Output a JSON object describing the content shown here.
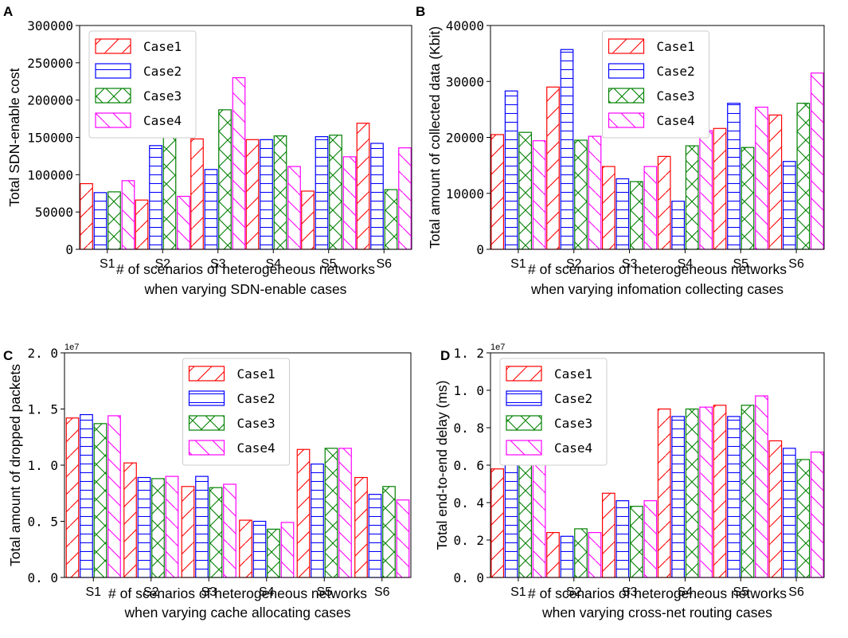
{
  "colors": {
    "case1": "#ff0000",
    "case2": "#0000ff",
    "case3": "#008000",
    "case4": "#ff00ff"
  },
  "chart_data": [
    {
      "panel": "A",
      "type": "bar",
      "title": "",
      "ylabel": "Total SDN-enable cost",
      "xlabel": "# of scenarios of heterogeneous networks",
      "xlabel2": "when varying SDN-enable cases",
      "categories": [
        "S1",
        "S2",
        "S3",
        "S4",
        "S5",
        "S6"
      ],
      "ylim": [
        0,
        300000
      ],
      "yticks": [
        0,
        50000,
        100000,
        150000,
        200000,
        250000,
        300000
      ],
      "ytick_labels": [
        "0",
        "50000",
        "100000",
        "150000",
        "200000",
        "250000",
        "300000"
      ],
      "scale_label": "",
      "legend_position": "upper-left",
      "series": [
        {
          "name": "Case1",
          "values": [
            88000,
            66000,
            148000,
            147000,
            78000,
            169000
          ]
        },
        {
          "name": "Case2",
          "values": [
            76000,
            139000,
            107000,
            147000,
            151000,
            142000
          ]
        },
        {
          "name": "Case3",
          "values": [
            77000,
            156000,
            187000,
            152000,
            153000,
            80000
          ]
        },
        {
          "name": "Case4",
          "values": [
            92000,
            71000,
            230000,
            111000,
            124000,
            136000
          ]
        }
      ]
    },
    {
      "panel": "B",
      "type": "bar",
      "title": "",
      "ylabel": "Total amount of collected data (Kbit)",
      "xlabel": "# of scenarios of heterogeneous networks",
      "xlabel2": "when varying infomation collecting cases",
      "categories": [
        "S1",
        "S2",
        "S3",
        "S4",
        "S5",
        "S6"
      ],
      "ylim": [
        0,
        40000
      ],
      "yticks": [
        0,
        10000,
        20000,
        30000,
        40000
      ],
      "ytick_labels": [
        "0",
        "10000",
        "20000",
        "30000",
        "40000"
      ],
      "scale_label": "",
      "legend_position": "upper-center",
      "series": [
        {
          "name": "Case1",
          "values": [
            20500,
            29000,
            14800,
            16600,
            21600,
            24000
          ]
        },
        {
          "name": "Case2",
          "values": [
            28300,
            35700,
            12600,
            8600,
            26100,
            15700
          ]
        },
        {
          "name": "Case3",
          "values": [
            20900,
            19500,
            12100,
            18500,
            18200,
            26100
          ]
        },
        {
          "name": "Case4",
          "values": [
            19400,
            20200,
            14800,
            21200,
            25400,
            31500
          ]
        }
      ]
    },
    {
      "panel": "C",
      "type": "bar",
      "title": "",
      "ylabel": "Total amount of dropped packets",
      "xlabel": "# of scenarios of heterogeneous networks",
      "xlabel2": "when varying cache allocating cases",
      "categories": [
        "S1",
        "S2",
        "S3",
        "S4",
        "S5",
        "S6"
      ],
      "ylim": [
        0,
        2.0
      ],
      "yticks": [
        0,
        0.5,
        1.0,
        1.5,
        2.0
      ],
      "ytick_labels": [
        "0. 0",
        "0. 5",
        "1. 0",
        "1. 5",
        "2. 0"
      ],
      "scale_label": "1e7",
      "legend_position": "upper-center",
      "series": [
        {
          "name": "Case1",
          "values": [
            1.42,
            1.02,
            0.81,
            0.51,
            1.14,
            0.89
          ]
        },
        {
          "name": "Case2",
          "values": [
            1.45,
            0.89,
            0.9,
            0.5,
            1.01,
            0.74
          ]
        },
        {
          "name": "Case3",
          "values": [
            1.37,
            0.88,
            0.8,
            0.43,
            1.15,
            0.81
          ]
        },
        {
          "name": "Case4",
          "values": [
            1.44,
            0.9,
            0.83,
            0.49,
            1.15,
            0.69
          ]
        }
      ]
    },
    {
      "panel": "D",
      "type": "bar",
      "title": "",
      "ylabel": "Total end-to-end delay (ms)",
      "xlabel": "# of scenarios of heterogeneous networks",
      "xlabel2": "when varying cross-net routing cases",
      "categories": [
        "S1",
        "S2",
        "S3",
        "S4",
        "S5",
        "S6"
      ],
      "ylim": [
        0,
        1.2
      ],
      "yticks": [
        0,
        0.2,
        0.4,
        0.6,
        0.8,
        1.0,
        1.2
      ],
      "ytick_labels": [
        "0. 0",
        "0. 2",
        "0. 4",
        "0. 6",
        "0. 8",
        "1. 0",
        "1. 2"
      ],
      "scale_label": "1e7",
      "legend_position": "upper-left",
      "series": [
        {
          "name": "Case1",
          "values": [
            0.58,
            0.24,
            0.45,
            0.9,
            0.92,
            0.73
          ]
        },
        {
          "name": "Case2",
          "values": [
            0.63,
            0.22,
            0.41,
            0.86,
            0.86,
            0.69
          ]
        },
        {
          "name": "Case3",
          "values": [
            0.62,
            0.26,
            0.38,
            0.9,
            0.92,
            0.63
          ]
        },
        {
          "name": "Case4",
          "values": [
            0.62,
            0.24,
            0.41,
            0.91,
            0.97,
            0.67
          ]
        }
      ]
    }
  ]
}
